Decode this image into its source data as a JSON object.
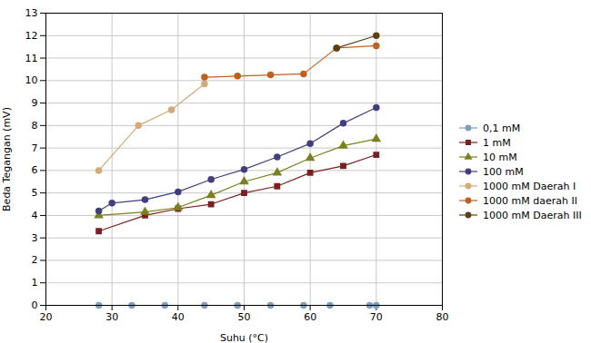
{
  "chart_data": {
    "type": "line",
    "xlabel": "Suhu (°C)",
    "ylabel": "Beda Tegangan (mV)",
    "xlim": [
      20,
      80
    ],
    "ylim": [
      0,
      13
    ],
    "xticks": [
      20,
      30,
      40,
      50,
      60,
      70,
      80
    ],
    "yticks": [
      0,
      1,
      2,
      3,
      4,
      5,
      6,
      7,
      8,
      9,
      10,
      11,
      12,
      13
    ],
    "grid": true,
    "legend": "right",
    "series": [
      {
        "name": "0,1 mM",
        "color": "#7F9FBF",
        "marker": "circle",
        "line_style": "solid",
        "x": [
          28,
          33,
          38,
          44,
          49,
          54,
          59,
          63,
          69,
          70
        ],
        "values": [
          0.0,
          0.0,
          0.0,
          0.0,
          0.0,
          0.0,
          0.0,
          0.0,
          0.0,
          0.0
        ]
      },
      {
        "name": "1 mM",
        "color": "#7B2020",
        "marker": "square",
        "line_style": "solid",
        "x": [
          28,
          35,
          40,
          45,
          50,
          55,
          60,
          65,
          70
        ],
        "values": [
          3.3,
          4.0,
          4.3,
          4.5,
          5.0,
          5.3,
          5.9,
          6.2,
          6.7
        ]
      },
      {
        "name": "10 mM",
        "color": "#7B8020",
        "marker": "triangle",
        "line_style": "solid",
        "x": [
          28,
          35,
          40,
          45,
          50,
          55,
          60,
          65,
          70
        ],
        "values": [
          4.0,
          4.15,
          4.35,
          4.9,
          5.5,
          5.9,
          6.55,
          7.1,
          7.4
        ]
      },
      {
        "name": "100 mM",
        "color": "#404080",
        "marker": "circle",
        "line_style": "solid",
        "x": [
          28,
          30,
          35,
          40,
          45,
          50,
          55,
          60,
          65,
          70
        ],
        "values": [
          4.2,
          4.55,
          4.7,
          5.05,
          5.6,
          6.05,
          6.6,
          7.2,
          8.1,
          8.8
        ]
      },
      {
        "name": "1000 mM Daerah I",
        "color": "#D4AA78",
        "marker": "circle",
        "line_style": "solid",
        "x": [
          28,
          34,
          39,
          44
        ],
        "values": [
          6.0,
          8.0,
          8.7,
          9.85
        ]
      },
      {
        "name": "1000 mM daerah II",
        "color": "#C06020",
        "marker": "circle",
        "line_style": "solid",
        "x": [
          44,
          49,
          54,
          59,
          64,
          70
        ],
        "values": [
          10.15,
          10.2,
          10.25,
          10.3,
          11.45,
          11.55
        ]
      },
      {
        "name": "1000 mM Daerah III",
        "color": "#604010",
        "marker": "circle",
        "line_style": "solid",
        "x": [
          64,
          70
        ],
        "values": [
          11.45,
          12.0
        ]
      }
    ]
  }
}
